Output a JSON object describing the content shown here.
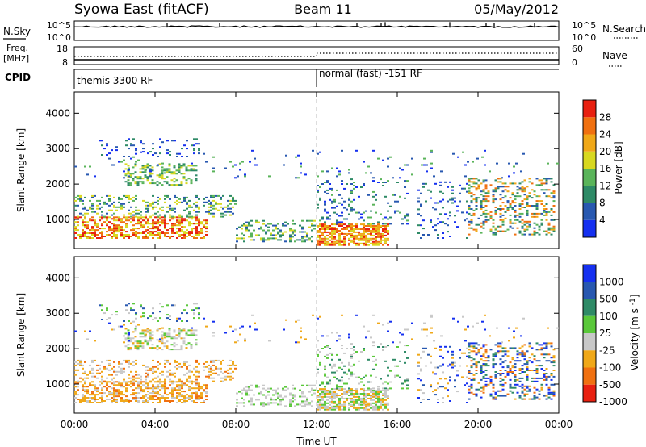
{
  "header": {
    "station": "Syowa East (fitACF)",
    "beam": "Beam 11",
    "date": "05/May/2012"
  },
  "top_panels": {
    "nsky_label": "N.Sky",
    "nsky_ticks": [
      "10^5",
      "10^0"
    ],
    "nsearch_label": "N.Search",
    "nsearch_ticks": [
      "10^5",
      "10^0"
    ],
    "freq_label": "Freq.",
    "freq_unit": "[MHz]",
    "freq_ticks": [
      "18",
      "8"
    ],
    "nave_label": "Nave",
    "nave_ticks": [
      "60",
      "0"
    ],
    "cpid_label": "CPID",
    "cpid_segments": [
      {
        "label": "themis 3300 RF",
        "start_hour": 0
      },
      {
        "label": "normal (fast) -151 RF",
        "start_hour": 12
      }
    ]
  },
  "chart_data": [
    {
      "type": "heatmap",
      "title": "",
      "xlabel": "",
      "ylabel": "Slant Range [km]",
      "xlim": [
        0,
        24
      ],
      "ylim": [
        180,
        4600
      ],
      "y_ticks": [
        "1000",
        "2000",
        "3000",
        "4000"
      ],
      "colorbar_label": "Power [dB]",
      "colorbar_ticks": [
        "4",
        "8",
        "12",
        "16",
        "20",
        "24",
        "28"
      ],
      "colors": [
        "#1530f0",
        "#2858b0",
        "#2e8a66",
        "#5ab45a",
        "#d8d820",
        "#f0a818",
        "#f07010",
        "#e82010"
      ],
      "mode_change_hour": 12
    },
    {
      "type": "heatmap",
      "title": "",
      "xlabel": "Time UT",
      "ylabel": "Slant Range [km]",
      "xlim": [
        0,
        24
      ],
      "ylim": [
        180,
        4600
      ],
      "x_ticks": [
        "00:00",
        "04:00",
        "08:00",
        "12:00",
        "16:00",
        "20:00",
        "00:00"
      ],
      "y_ticks": [
        "1000",
        "2000",
        "3000",
        "4000"
      ],
      "colorbar_label": "Velocity [m s-1]",
      "colorbar_ticks": [
        "1000",
        "500",
        "100",
        "25",
        "-25",
        "-100",
        "-500",
        "-1000"
      ],
      "colors": [
        "#1530f0",
        "#2858b0",
        "#2e8a66",
        "#5ac83a",
        "#c8c8c8",
        "#f0a818",
        "#f07010",
        "#e82010"
      ],
      "mode_change_hour": 12
    }
  ]
}
